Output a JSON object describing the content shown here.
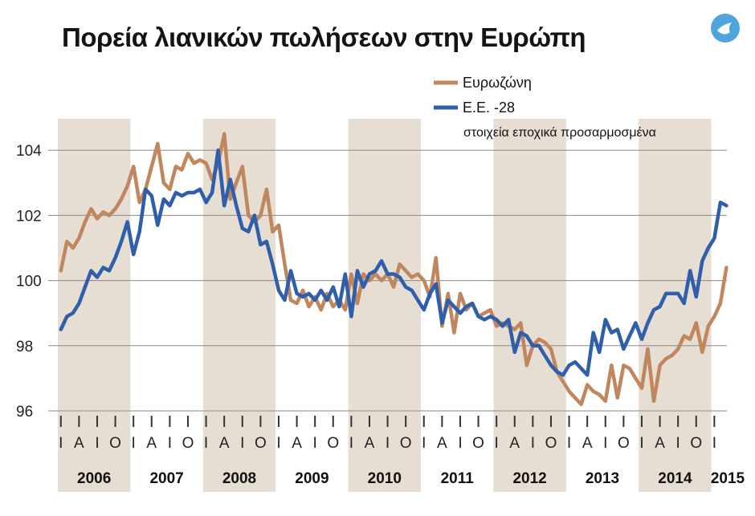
{
  "title": "Πορεία λιανικών πωλήσεων στην Ευρώπη",
  "logo_icon": "dove-logo-icon",
  "chart_data": {
    "type": "line",
    "title": "Πορεία λιανικών πωλήσεων στην Ευρώπη",
    "note": "στοιχεία εποχικά προσαρμοσμένα",
    "xlabel": "",
    "ylabel": "",
    "ylim": [
      96,
      105
    ],
    "yticks": [
      96,
      98,
      100,
      102,
      104
    ],
    "ytick_labels": [
      "96",
      "98",
      "100",
      "102",
      "104"
    ],
    "grid": "horizontal",
    "legend_position": "top-right",
    "x_start": "2006-01",
    "x_end": "2015-03",
    "years": [
      "2006",
      "2007",
      "2008",
      "2009",
      "2010",
      "2011",
      "2012",
      "2013",
      "2014",
      "2015"
    ],
    "shaded_years": [
      "2006",
      "2008",
      "2010",
      "2012",
      "2014"
    ],
    "quarter_labels": [
      [
        "Ι",
        "Α",
        "Ι",
        "Ο"
      ],
      [
        "Ι",
        "Α",
        "Ι",
        "Ο"
      ],
      [
        "Ι",
        "Α",
        "Ι",
        "Ο"
      ],
      [
        "Ι",
        "Α",
        "Ι",
        "Ο"
      ],
      [
        "Ι",
        "Α",
        "Ι",
        "Ο"
      ],
      [
        "Ι",
        "Α",
        "Ι",
        "Ο"
      ],
      [
        "Ι",
        "Α",
        "Ι",
        "Ο"
      ],
      [
        "Ι",
        "Α",
        "Ι",
        "Ο"
      ],
      [
        "Ι",
        "Α",
        "Ι",
        "Ο"
      ],
      [
        "Ι"
      ]
    ],
    "series": [
      {
        "name": "Ευρωζώνη",
        "color": "#c0875e",
        "values": [
          100.3,
          101.2,
          101.0,
          101.3,
          101.8,
          102.2,
          101.9,
          102.1,
          102.0,
          102.2,
          102.5,
          102.9,
          103.5,
          102.4,
          102.8,
          103.5,
          104.2,
          103.0,
          102.8,
          103.5,
          103.4,
          103.9,
          103.6,
          103.7,
          103.6,
          103.1,
          103.6,
          104.5,
          102.5,
          103.0,
          103.5,
          102.0,
          101.8,
          102.0,
          102.8,
          101.5,
          101.7,
          100.5,
          99.4,
          99.3,
          99.7,
          99.2,
          99.5,
          99.1,
          99.6,
          99.2,
          99.4,
          99.1,
          100.2,
          99.3,
          100.2,
          100.0,
          100.2,
          100.0,
          100.2,
          99.8,
          100.5,
          100.3,
          100.1,
          100.2,
          100.0,
          99.5,
          100.7,
          98.6,
          99.6,
          98.4,
          99.6,
          99.1,
          99.3,
          98.9,
          99.0,
          99.1,
          98.6,
          98.7,
          98.6,
          98.5,
          98.7,
          97.4,
          98.0,
          98.2,
          98.1,
          97.9,
          97.2,
          96.9,
          96.6,
          96.4,
          96.2,
          96.8,
          96.6,
          96.5,
          96.3,
          97.4,
          96.4,
          97.4,
          97.3,
          97.0,
          96.7,
          97.9,
          96.3,
          97.4,
          97.6,
          97.7,
          97.9,
          98.3,
          98.2,
          98.7,
          97.8,
          98.6,
          98.9,
          99.3,
          100.4
        ]
      },
      {
        "name": "Ε.Ε. -28",
        "color": "#2f5faa",
        "values": [
          98.5,
          98.9,
          99.0,
          99.3,
          99.8,
          100.3,
          100.1,
          100.4,
          100.3,
          100.7,
          101.2,
          101.8,
          100.8,
          101.5,
          102.8,
          102.6,
          101.7,
          102.5,
          102.3,
          102.7,
          102.6,
          102.7,
          102.7,
          102.8,
          102.4,
          102.7,
          104.0,
          102.3,
          103.1,
          102.3,
          101.6,
          101.5,
          102.0,
          101.1,
          101.2,
          100.5,
          99.7,
          99.4,
          100.3,
          99.6,
          99.5,
          99.6,
          99.4,
          99.7,
          99.4,
          99.8,
          99.2,
          100.2,
          98.9,
          100.3,
          99.8,
          100.2,
          100.3,
          100.6,
          100.2,
          100.2,
          100.1,
          99.8,
          99.7,
          99.4,
          99.1,
          99.6,
          99.9,
          98.7,
          99.4,
          99.2,
          99.0,
          99.2,
          99.3,
          98.9,
          98.8,
          98.9,
          98.8,
          98.6,
          98.8,
          97.8,
          98.4,
          98.3,
          98.0,
          98.0,
          97.7,
          97.4,
          97.2,
          97.1,
          97.4,
          97.5,
          97.3,
          97.1,
          98.4,
          97.8,
          98.8,
          98.4,
          98.5,
          97.9,
          98.3,
          98.7,
          98.2,
          98.7,
          99.1,
          99.2,
          99.6,
          99.6,
          99.6,
          99.3,
          100.3,
          99.5,
          100.6,
          101.0,
          101.3,
          102.4,
          102.3
        ]
      }
    ]
  }
}
